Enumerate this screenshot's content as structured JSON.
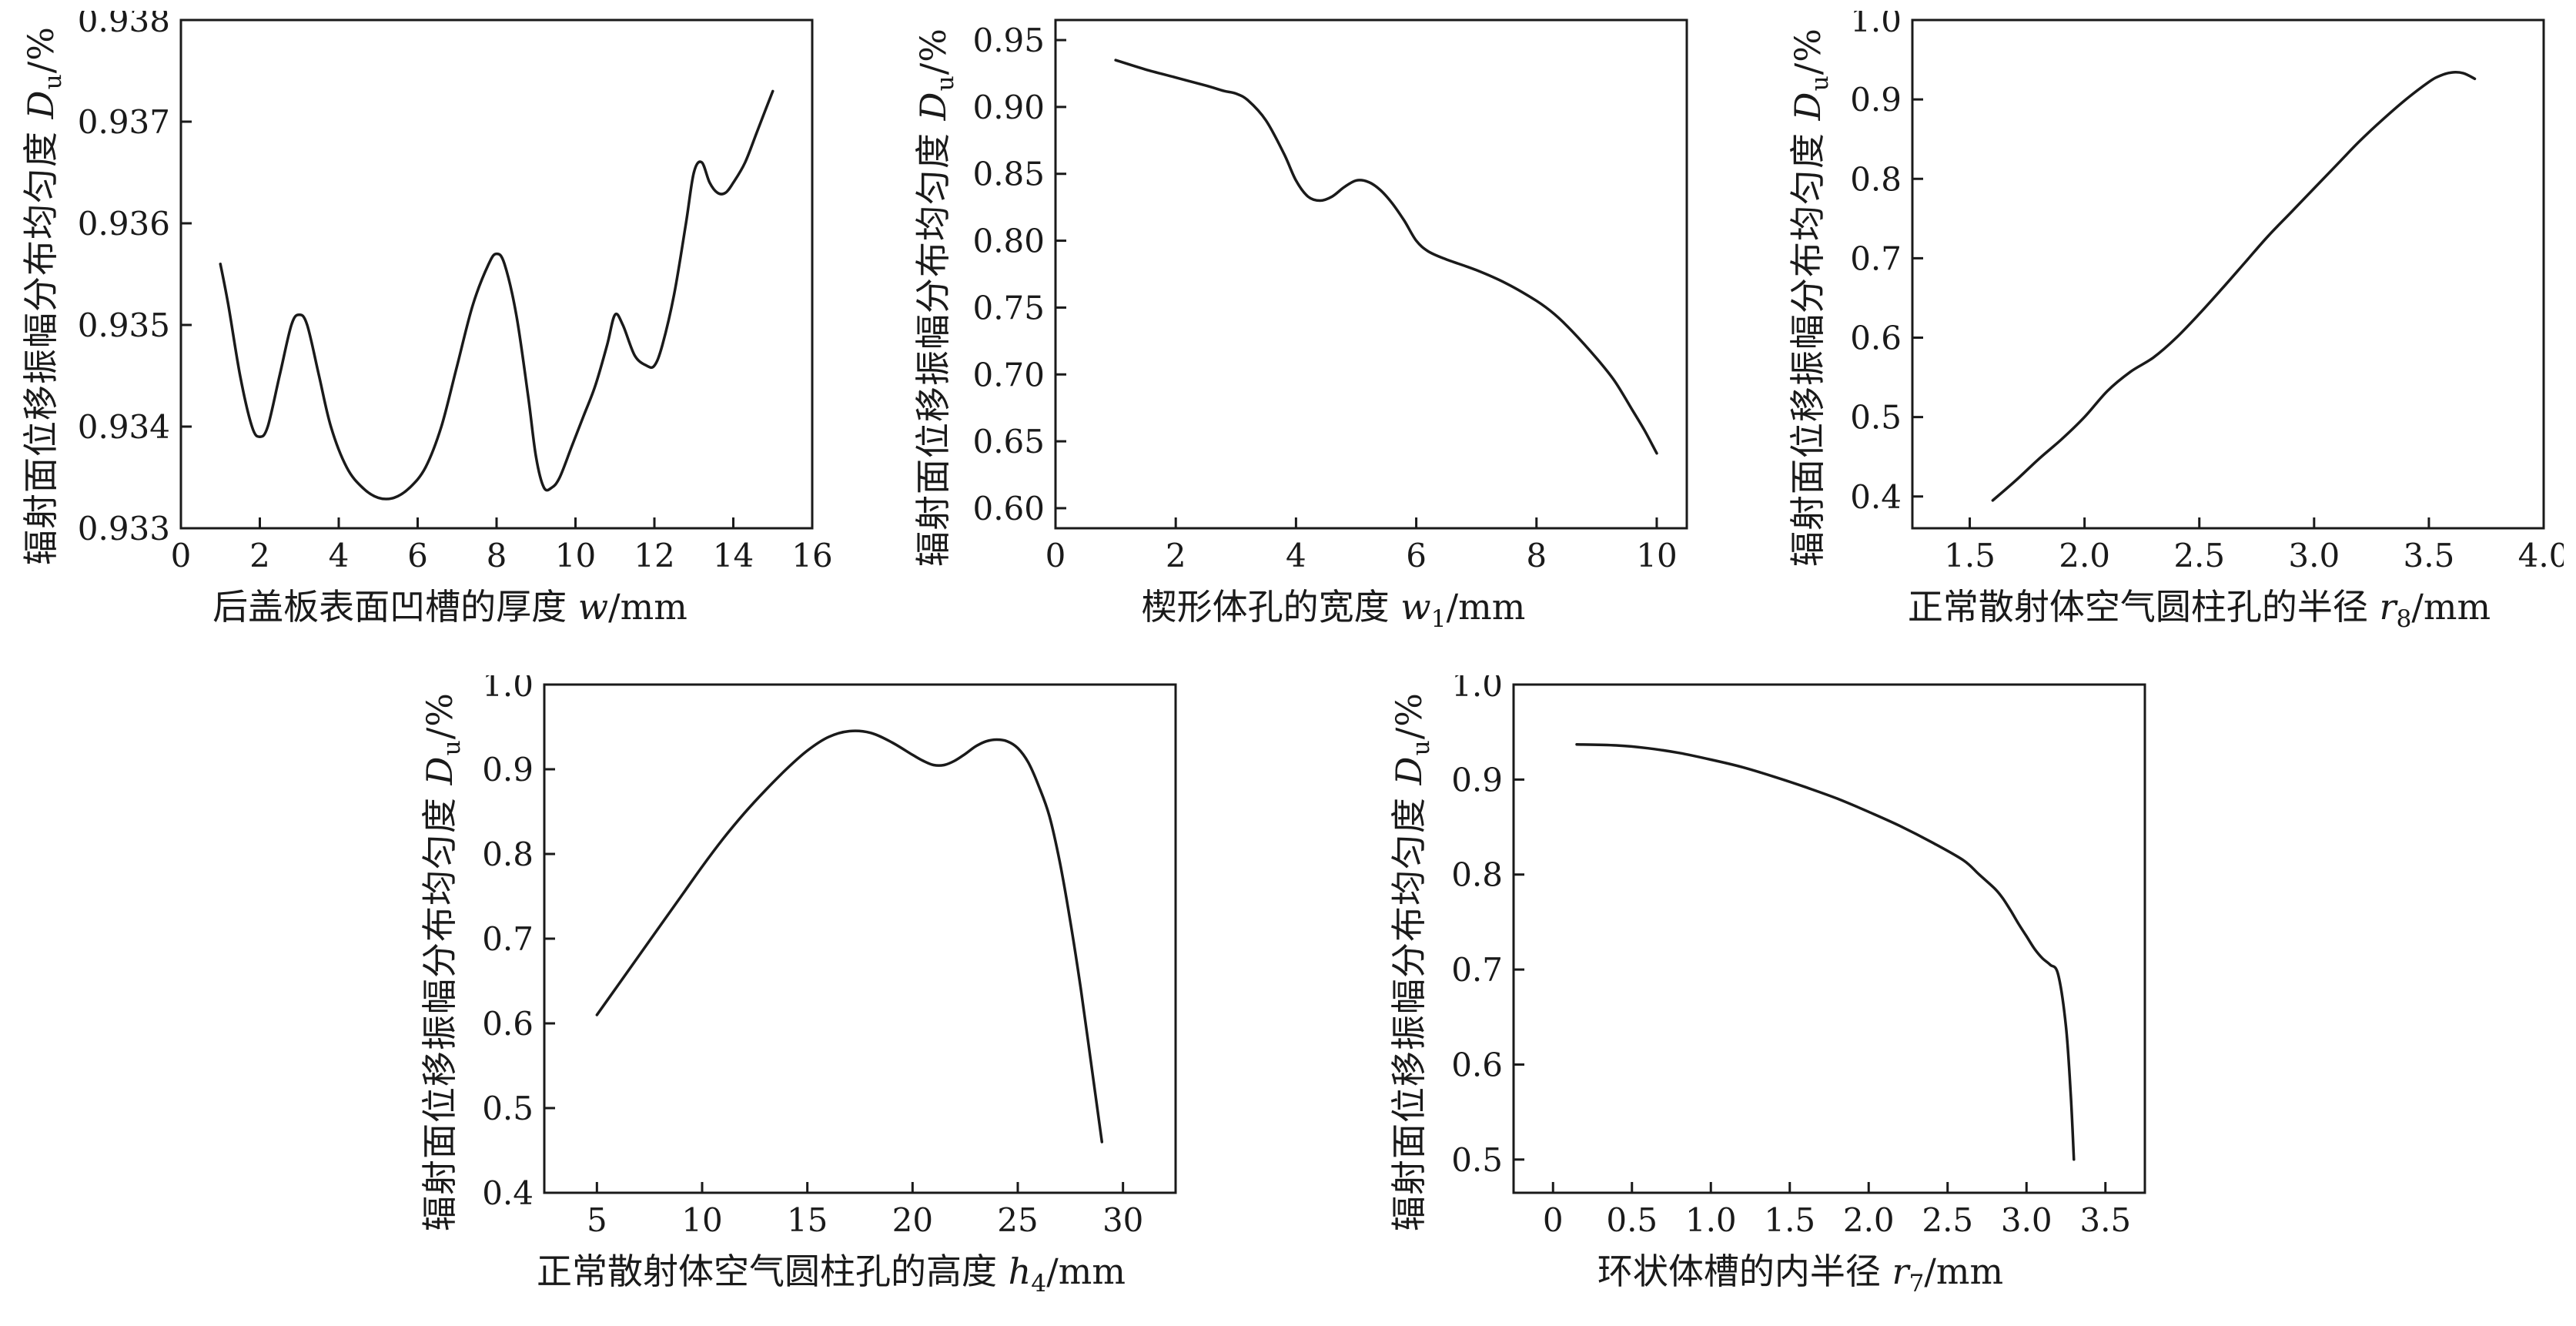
{
  "figure": {
    "background": "#ffffff",
    "axis_color": "#1a1a1a"
  },
  "chart_data": [
    {
      "id": "groove-thickness",
      "type": "line",
      "title": "",
      "ylabel_segments": [
        {
          "t": "辐射面位移振幅分布均匀度 "
        },
        {
          "t": "D",
          "i": true
        },
        {
          "t": "u",
          "sub": true
        },
        {
          "t": "/%"
        }
      ],
      "xlabel_segments": [
        {
          "t": "后盖板表面凹槽的厚度 "
        },
        {
          "t": "w",
          "i": true
        },
        {
          "t": "/mm"
        }
      ],
      "xlim": [
        0,
        16
      ],
      "ylim": [
        0.933,
        0.938
      ],
      "xtick_vals": [
        0,
        2,
        4,
        6,
        8,
        10,
        12,
        14,
        16
      ],
      "xtick_labels": [
        "0",
        "2",
        "4",
        "6",
        "8",
        "10",
        "12",
        "14",
        "16"
      ],
      "ytick_vals": [
        0.933,
        0.934,
        0.935,
        0.936,
        0.937,
        0.938
      ],
      "ytick_labels": [
        "0.933",
        "0.934",
        "0.935",
        "0.936",
        "0.937",
        "0.938"
      ],
      "x": [
        1.0,
        1.2,
        1.5,
        1.8,
        2.0,
        2.2,
        2.5,
        2.8,
        3.0,
        3.2,
        3.5,
        3.8,
        4.2,
        4.6,
        5.0,
        5.4,
        5.8,
        6.2,
        6.6,
        7.0,
        7.4,
        7.8,
        8.0,
        8.2,
        8.5,
        8.8,
        9.0,
        9.2,
        9.4,
        9.6,
        9.9,
        10.2,
        10.5,
        10.8,
        11.0,
        11.2,
        11.5,
        11.8,
        12.0,
        12.2,
        12.5,
        12.8,
        13.0,
        13.2,
        13.4,
        13.6,
        13.8,
        14.0,
        14.3,
        14.6,
        14.8,
        15.0
      ],
      "y": [
        0.9356,
        0.9352,
        0.9345,
        0.934,
        0.9339,
        0.934,
        0.9345,
        0.935,
        0.9351,
        0.935,
        0.9345,
        0.934,
        0.9336,
        0.9334,
        0.9333,
        0.9333,
        0.9334,
        0.9336,
        0.934,
        0.9346,
        0.9352,
        0.9356,
        0.9357,
        0.9356,
        0.9351,
        0.9343,
        0.9337,
        0.9334,
        0.9334,
        0.9335,
        0.9338,
        0.9341,
        0.9344,
        0.9348,
        0.9351,
        0.935,
        0.9347,
        0.9346,
        0.9346,
        0.9348,
        0.9353,
        0.936,
        0.9365,
        0.9366,
        0.9364,
        0.9363,
        0.9363,
        0.9364,
        0.9366,
        0.9369,
        0.9371,
        0.9373
      ],
      "line_color": "#1a1a1a"
    },
    {
      "id": "wedge-hole-width",
      "type": "line",
      "title": "",
      "ylabel_segments": [
        {
          "t": "辐射面位移振幅分布均匀度 "
        },
        {
          "t": "D",
          "i": true
        },
        {
          "t": "u",
          "sub": true
        },
        {
          "t": "/%"
        }
      ],
      "xlabel_segments": [
        {
          "t": "楔形体孔的宽度 "
        },
        {
          "t": "w",
          "i": true
        },
        {
          "t": "1",
          "sub": true
        },
        {
          "t": "/mm"
        }
      ],
      "xlim": [
        0,
        10.5
      ],
      "ylim": [
        0.585,
        0.965
      ],
      "xtick_vals": [
        0,
        2,
        4,
        6,
        8,
        10
      ],
      "xtick_labels": [
        "0",
        "2",
        "4",
        "6",
        "8",
        "10"
      ],
      "ytick_vals": [
        0.6,
        0.65,
        0.7,
        0.75,
        0.8,
        0.85,
        0.9,
        0.95
      ],
      "ytick_labels": [
        "0.60",
        "0.65",
        "0.70",
        "0.75",
        "0.80",
        "0.85",
        "0.90",
        "0.95"
      ],
      "x": [
        1.0,
        1.5,
        2.0,
        2.5,
        2.8,
        3.0,
        3.2,
        3.5,
        3.8,
        4.0,
        4.2,
        4.4,
        4.6,
        4.8,
        5.0,
        5.2,
        5.4,
        5.6,
        5.8,
        6.0,
        6.2,
        6.5,
        7.0,
        7.5,
        8.0,
        8.3,
        8.6,
        9.0,
        9.3,
        9.6,
        9.8,
        10.0
      ],
      "y": [
        0.935,
        0.928,
        0.922,
        0.916,
        0.912,
        0.91,
        0.905,
        0.89,
        0.865,
        0.845,
        0.833,
        0.83,
        0.833,
        0.84,
        0.845,
        0.844,
        0.838,
        0.828,
        0.815,
        0.8,
        0.792,
        0.786,
        0.778,
        0.768,
        0.755,
        0.745,
        0.732,
        0.712,
        0.695,
        0.673,
        0.658,
        0.641
      ],
      "line_color": "#1a1a1a"
    },
    {
      "id": "cylinder-hole-radius",
      "type": "line",
      "title": "",
      "ylabel_segments": [
        {
          "t": "辐射面位移振幅分布均匀度 "
        },
        {
          "t": "D",
          "i": true
        },
        {
          "t": "u",
          "sub": true
        },
        {
          "t": "/%"
        }
      ],
      "xlabel_segments": [
        {
          "t": "正常散射体空气圆柱孔的半径 "
        },
        {
          "t": "r",
          "i": true
        },
        {
          "t": "8",
          "sub": true
        },
        {
          "t": "/mm"
        }
      ],
      "xlim": [
        1.25,
        4.0
      ],
      "ylim": [
        0.36,
        1.0
      ],
      "xtick_vals": [
        1.5,
        2.0,
        2.5,
        3.0,
        3.5,
        4.0
      ],
      "xtick_labels": [
        "1.5",
        "2.0",
        "2.5",
        "3.0",
        "3.5",
        "4.0"
      ],
      "ytick_vals": [
        0.4,
        0.5,
        0.6,
        0.7,
        0.8,
        0.9,
        1.0
      ],
      "ytick_labels": [
        "0.4",
        "0.5",
        "0.6",
        "0.7",
        "0.8",
        "0.9",
        "1.0"
      ],
      "x": [
        1.6,
        1.7,
        1.8,
        1.9,
        2.0,
        2.1,
        2.2,
        2.3,
        2.4,
        2.5,
        2.6,
        2.7,
        2.8,
        2.9,
        3.0,
        3.1,
        3.2,
        3.3,
        3.4,
        3.5,
        3.55,
        3.6,
        3.65,
        3.7
      ],
      "y": [
        0.395,
        0.42,
        0.447,
        0.472,
        0.5,
        0.533,
        0.557,
        0.575,
        0.6,
        0.63,
        0.662,
        0.695,
        0.728,
        0.758,
        0.788,
        0.818,
        0.848,
        0.875,
        0.9,
        0.922,
        0.93,
        0.934,
        0.933,
        0.926
      ],
      "line_color": "#1a1a1a"
    },
    {
      "id": "cylinder-hole-height",
      "type": "line",
      "title": "",
      "ylabel_segments": [
        {
          "t": "辐射面位移振幅分布均匀度 "
        },
        {
          "t": "D",
          "i": true
        },
        {
          "t": "u",
          "sub": true
        },
        {
          "t": "/%"
        }
      ],
      "xlabel_segments": [
        {
          "t": "正常散射体空气圆柱孔的高度 "
        },
        {
          "t": "h",
          "i": true
        },
        {
          "t": "4",
          "sub": true
        },
        {
          "t": "/mm"
        }
      ],
      "xlim": [
        2.5,
        32.5
      ],
      "ylim": [
        0.4,
        1.0
      ],
      "xtick_vals": [
        5,
        10,
        15,
        20,
        25,
        30
      ],
      "xtick_labels": [
        "5",
        "10",
        "15",
        "20",
        "25",
        "30"
      ],
      "ytick_vals": [
        0.4,
        0.5,
        0.6,
        0.7,
        0.8,
        0.9,
        1.0
      ],
      "ytick_labels": [
        "0.4",
        "0.5",
        "0.6",
        "0.7",
        "0.8",
        "0.9",
        "1.0"
      ],
      "x": [
        5,
        6,
        7,
        8,
        9,
        10,
        11,
        12,
        13,
        14,
        15,
        16,
        17,
        18,
        19,
        20,
        20.5,
        21,
        21.5,
        22,
        22.5,
        23,
        23.5,
        24,
        24.5,
        25,
        25.5,
        26,
        26.5,
        27,
        27.5,
        28,
        28.5,
        29
      ],
      "y": [
        0.61,
        0.645,
        0.68,
        0.715,
        0.75,
        0.785,
        0.818,
        0.848,
        0.875,
        0.9,
        0.922,
        0.938,
        0.945,
        0.943,
        0.932,
        0.917,
        0.91,
        0.905,
        0.905,
        0.91,
        0.918,
        0.927,
        0.933,
        0.935,
        0.933,
        0.925,
        0.908,
        0.88,
        0.845,
        0.79,
        0.72,
        0.64,
        0.55,
        0.46
      ],
      "line_color": "#1a1a1a"
    },
    {
      "id": "annular-groove-inner-radius",
      "type": "line",
      "title": "",
      "ylabel_segments": [
        {
          "t": "辐射面位移振幅分布均匀度 "
        },
        {
          "t": "D",
          "i": true
        },
        {
          "t": "u",
          "sub": true
        },
        {
          "t": "/%"
        }
      ],
      "xlabel_segments": [
        {
          "t": "环状体槽的内半径 "
        },
        {
          "t": "r",
          "i": true
        },
        {
          "t": "7",
          "sub": true
        },
        {
          "t": "/mm"
        }
      ],
      "xlim": [
        -0.25,
        3.75
      ],
      "ylim": [
        0.465,
        1.0
      ],
      "xtick_vals": [
        0,
        0.5,
        1.0,
        1.5,
        2.0,
        2.5,
        3.0,
        3.5
      ],
      "xtick_labels": [
        "0",
        "0.5",
        "1.0",
        "1.5",
        "2.0",
        "2.5",
        "3.0",
        "3.5"
      ],
      "ytick_vals": [
        0.5,
        0.6,
        0.7,
        0.8,
        0.9,
        1.0
      ],
      "ytick_labels": [
        "0.5",
        "0.6",
        "0.7",
        "0.8",
        "0.9",
        "1.0"
      ],
      "x": [
        0.15,
        0.4,
        0.6,
        0.8,
        1.0,
        1.2,
        1.4,
        1.6,
        1.8,
        2.0,
        2.2,
        2.4,
        2.6,
        2.7,
        2.8,
        2.85,
        2.9,
        2.95,
        3.0,
        3.05,
        3.1,
        3.15,
        3.2,
        3.25,
        3.28,
        3.3
      ],
      "y": [
        0.937,
        0.936,
        0.933,
        0.928,
        0.921,
        0.913,
        0.903,
        0.892,
        0.88,
        0.866,
        0.851,
        0.834,
        0.815,
        0.8,
        0.785,
        0.775,
        0.762,
        0.748,
        0.735,
        0.722,
        0.712,
        0.705,
        0.695,
        0.64,
        0.57,
        0.5
      ],
      "line_color": "#1a1a1a"
    }
  ]
}
